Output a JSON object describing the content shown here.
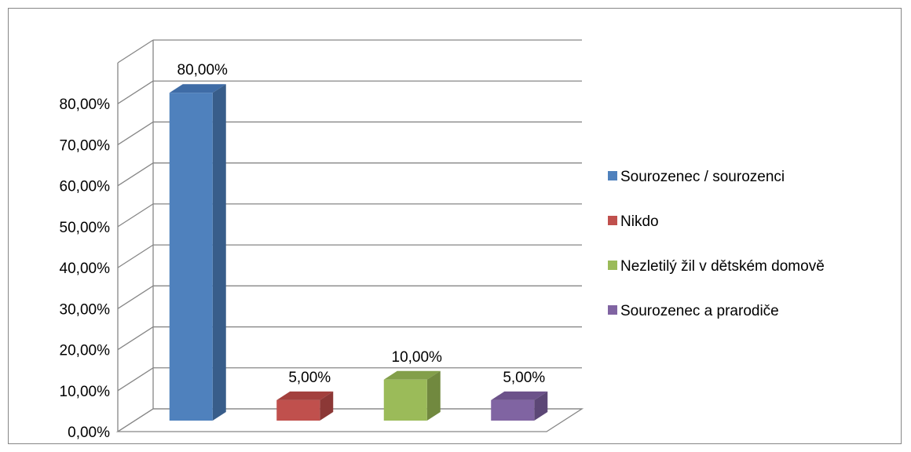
{
  "chart_data": {
    "type": "bar",
    "style": "3d-clustered-column",
    "categories": [
      "Sourozenec / sourozenci",
      "Nikdo",
      "Nezletilý žil v dětském domově",
      "Sourozenec a prarodiče"
    ],
    "values": [
      80,
      5,
      10,
      5
    ],
    "data_labels": [
      "80,00%",
      "5,00%",
      "10,00%",
      "5,00%"
    ],
    "ylim": [
      0,
      80
    ],
    "y_ticks": [
      0,
      10,
      20,
      30,
      40,
      50,
      60,
      70,
      80
    ],
    "y_tick_labels": [
      "0,00%",
      "10,00%",
      "20,00%",
      "30,00%",
      "40,00%",
      "50,00%",
      "60,00%",
      "70,00%",
      "80,00%"
    ],
    "title": "",
    "xlabel": "",
    "ylabel": "",
    "grid": true,
    "legend_position": "right",
    "colors": {
      "front": [
        "#4F81BD",
        "#C0504D",
        "#9BBB59",
        "#8064A2"
      ],
      "side": [
        "#385D8A",
        "#8C3836",
        "#71893F",
        "#5C4776"
      ],
      "top": [
        "#3F6CA6",
        "#A3403D",
        "#839F4A",
        "#6C528A"
      ],
      "gridline": "#868686"
    }
  }
}
